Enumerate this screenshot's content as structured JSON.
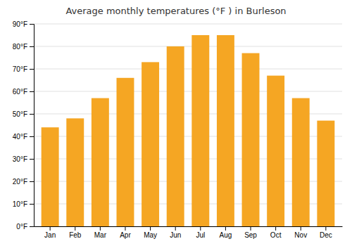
{
  "chart_data": {
    "type": "bar",
    "title": "Average monthly temperatures (°F ) in Burleson",
    "categories": [
      "Jan",
      "Feb",
      "Mar",
      "Apr",
      "May",
      "Jun",
      "Jul",
      "Aug",
      "Sep",
      "Oct",
      "Nov",
      "Dec"
    ],
    "values": [
      44,
      48,
      57,
      66,
      73,
      80,
      85,
      85,
      77,
      67,
      57,
      47
    ],
    "color": "#F5A623",
    "ylim": [
      0,
      90
    ],
    "yticks": [
      {
        "value": 0,
        "label": "0°F"
      },
      {
        "value": 10,
        "label": "10°F"
      },
      {
        "value": 20,
        "label": "20°F"
      },
      {
        "value": 30,
        "label": "30°F"
      },
      {
        "value": 40,
        "label": "40°F"
      },
      {
        "value": 50,
        "label": "50°F"
      },
      {
        "value": 60,
        "label": "60°F"
      },
      {
        "value": 70,
        "label": "70°F"
      },
      {
        "value": 80,
        "label": "80°F"
      },
      {
        "value": 90,
        "label": "90°F"
      }
    ],
    "grid": true
  }
}
